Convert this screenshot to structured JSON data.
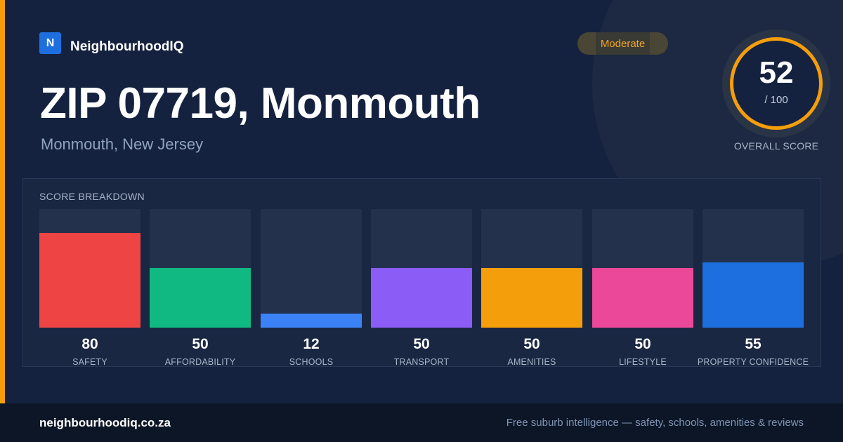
{
  "brand": {
    "logo_letter": "N",
    "name": "NeighbourhoodIQ",
    "color": "#1d6fe0"
  },
  "badge": {
    "label": "Moderate",
    "color": "#f5a623"
  },
  "location": {
    "title": "ZIP 07719, Monmouth",
    "subtitle": "Monmouth, New Jersey"
  },
  "overall": {
    "score": "52",
    "max_label": "/ 100",
    "caption": "OVERALL SCORE",
    "ring_color": "#f59e0b"
  },
  "breakdown": {
    "heading": "SCORE BREAKDOWN",
    "max": 100,
    "items": [
      {
        "label": "SAFETY",
        "value": "80",
        "score": 80,
        "color": "#ef4444"
      },
      {
        "label": "AFFORDABILITY",
        "value": "50",
        "score": 50,
        "color": "#10b981"
      },
      {
        "label": "SCHOOLS",
        "value": "12",
        "score": 12,
        "color": "#3b82f6"
      },
      {
        "label": "TRANSPORT",
        "value": "50",
        "score": 50,
        "color": "#8b5cf6"
      },
      {
        "label": "AMENITIES",
        "value": "50",
        "score": 50,
        "color": "#f59e0b"
      },
      {
        "label": "LIFESTYLE",
        "value": "50",
        "score": 50,
        "color": "#ec4899"
      },
      {
        "label": "PROPERTY CONFIDENCE",
        "value": "55",
        "score": 55,
        "color": "#1d6fe0"
      }
    ]
  },
  "footer": {
    "site": "neighbourhoodiq.co.za",
    "tagline": "Free suburb intelligence — safety, schools, amenities & reviews"
  }
}
